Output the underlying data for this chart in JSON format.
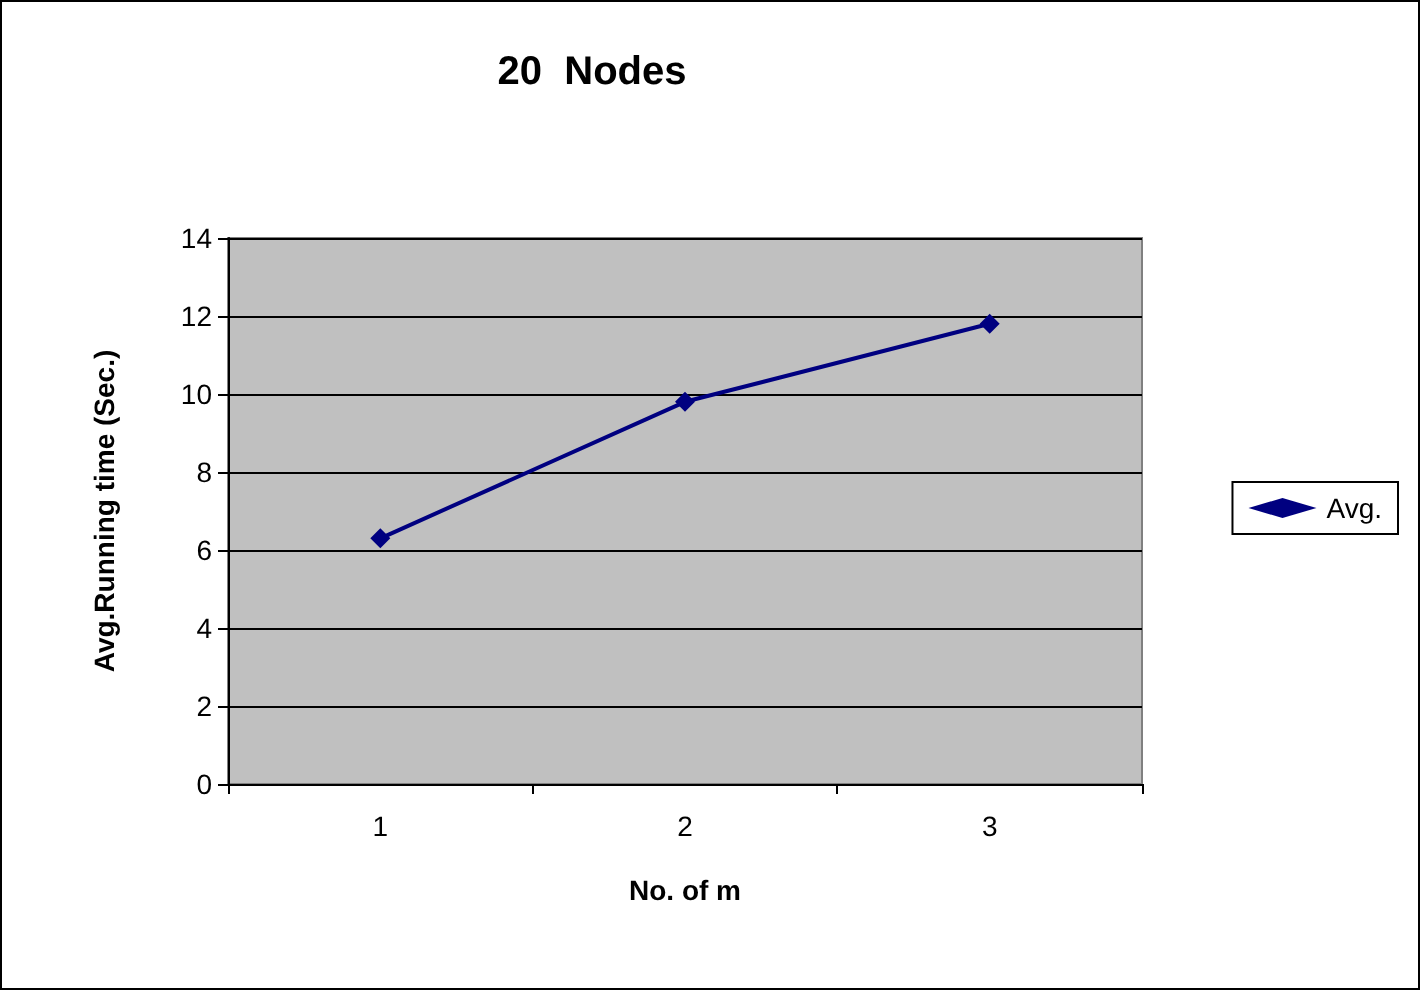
{
  "chart_data": {
    "type": "line",
    "title": "20  Nodes",
    "xlabel": "No. of m",
    "ylabel": "Avg.Running time (Sec.)",
    "categories": [
      "1",
      "2",
      "3"
    ],
    "series": [
      {
        "name": "Avg.",
        "color": "#000080",
        "values": [
          6.3,
          9.8,
          11.8
        ]
      }
    ],
    "ylim": [
      0,
      14
    ],
    "yticks": [
      0,
      2,
      4,
      6,
      8,
      10,
      12,
      14
    ],
    "grid": "y",
    "legend": "right",
    "marker": "diamond",
    "line_style": "solid"
  }
}
